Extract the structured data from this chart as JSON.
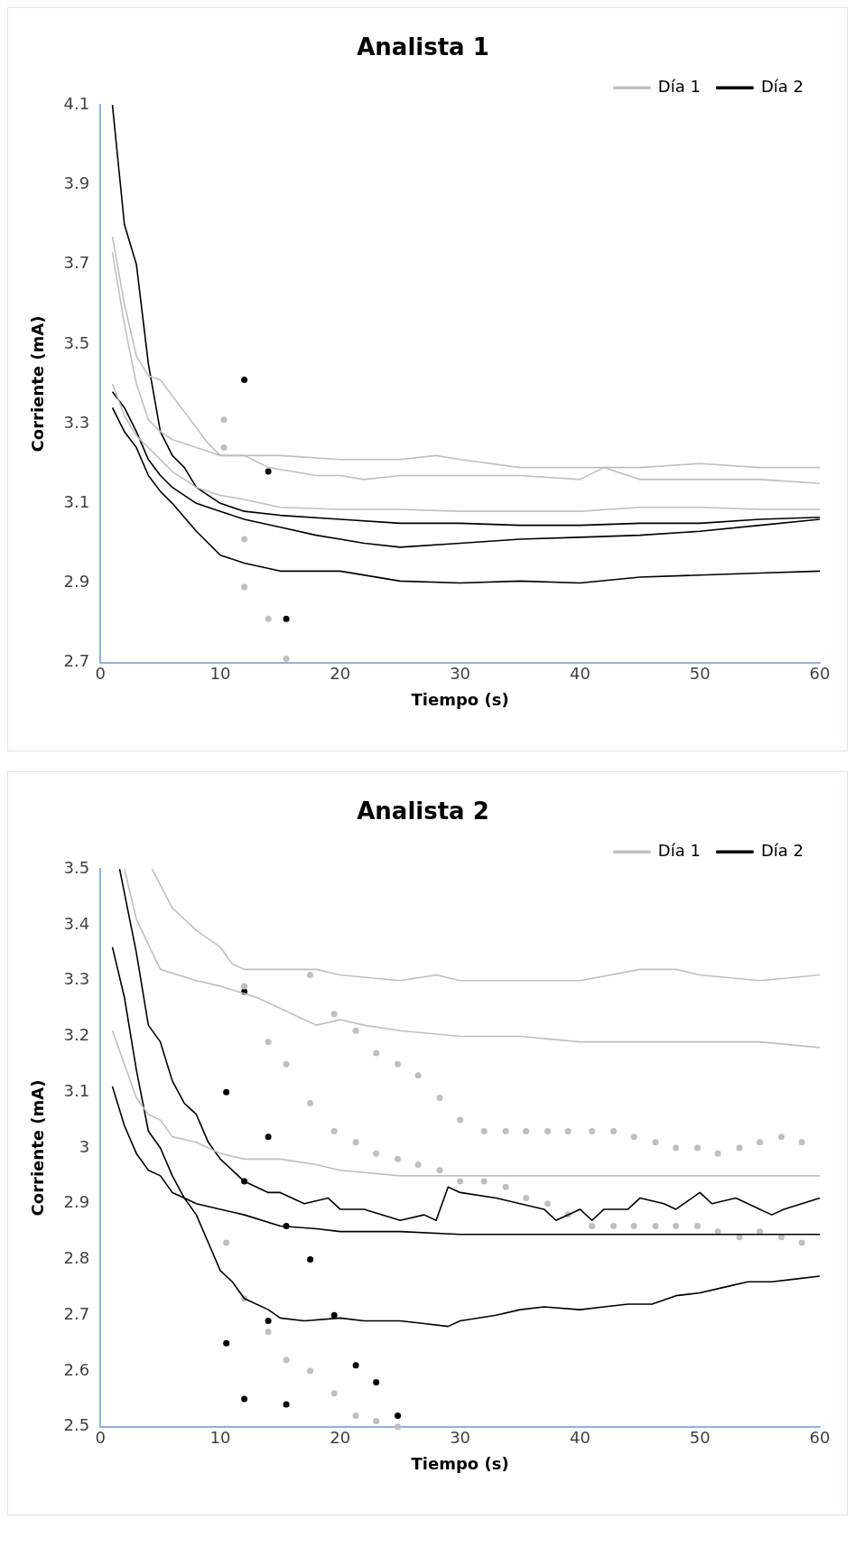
{
  "chart_data": [
    {
      "type": "line",
      "title": "Analista 1",
      "xlabel": "Tiempo (s)",
      "ylabel": "Corriente (mA)",
      "xlim": [
        0,
        60
      ],
      "ylim": [
        2.7,
        4.1
      ],
      "xticks": [
        0,
        10,
        20,
        30,
        40,
        50,
        60
      ],
      "yticks": [
        2.7,
        2.9,
        3.1,
        3.3,
        3.5,
        3.7,
        3.9,
        4.1
      ],
      "grid": false,
      "legend": "top right",
      "series": [
        {
          "name": "Día 1",
          "color": "#bfbfbf",
          "x": [
            1,
            2,
            3,
            4,
            5,
            6,
            7,
            8,
            9,
            10,
            12,
            15,
            20,
            25,
            28,
            30,
            35,
            40,
            45,
            50,
            55,
            60
          ],
          "values": [
            3.77,
            3.6,
            3.47,
            3.42,
            3.41,
            3.37,
            3.33,
            3.29,
            3.25,
            3.22,
            3.22,
            3.22,
            3.21,
            3.21,
            3.22,
            3.21,
            3.19,
            3.19,
            3.19,
            3.2,
            3.19,
            3.19
          ]
        },
        {
          "color": "#bfbfbf",
          "x": [
            1,
            2,
            3,
            4,
            5,
            6,
            8,
            10,
            12,
            14,
            16,
            18,
            20,
            22,
            25,
            30,
            35,
            40,
            42,
            45,
            50,
            55,
            60
          ],
          "values": [
            3.73,
            3.55,
            3.4,
            3.31,
            3.28,
            3.26,
            3.24,
            3.22,
            3.22,
            3.19,
            3.18,
            3.17,
            3.17,
            3.16,
            3.17,
            3.17,
            3.17,
            3.16,
            3.19,
            3.16,
            3.16,
            3.16,
            3.15
          ]
        },
        {
          "color": "#bfbfbf",
          "x": [
            1,
            2,
            3,
            4,
            5,
            6,
            8,
            10,
            12,
            15,
            20,
            25,
            30,
            35,
            40,
            45,
            50,
            55,
            60
          ],
          "values": [
            3.4,
            3.32,
            3.27,
            3.24,
            3.21,
            3.18,
            3.14,
            3.12,
            3.11,
            3.09,
            3.085,
            3.085,
            3.08,
            3.08,
            3.08,
            3.09,
            3.09,
            3.085,
            3.085
          ]
        },
        {
          "name": "Día 2",
          "color": "#000000",
          "x": [
            1,
            2,
            3,
            4,
            5,
            6,
            7,
            8,
            10,
            12,
            15,
            20,
            25,
            30,
            35,
            40,
            45,
            50,
            55,
            60
          ],
          "values": [
            4.1,
            3.8,
            3.7,
            3.45,
            3.28,
            3.22,
            3.19,
            3.14,
            3.1,
            3.08,
            3.07,
            3.06,
            3.05,
            3.05,
            3.045,
            3.045,
            3.05,
            3.05,
            3.06,
            3.065
          ]
        },
        {
          "color": "#000000",
          "x": [
            1,
            2,
            3,
            4,
            5,
            6,
            8,
            10,
            12,
            15,
            18,
            20,
            22,
            25,
            30,
            35,
            40,
            45,
            50,
            55,
            60
          ],
          "values": [
            3.38,
            3.34,
            3.28,
            3.21,
            3.17,
            3.14,
            3.1,
            3.08,
            3.06,
            3.04,
            3.02,
            3.01,
            3.0,
            2.99,
            3.0,
            3.01,
            3.015,
            3.02,
            3.03,
            3.045,
            3.06
          ]
        },
        {
          "color": "#000000",
          "x": [
            1,
            2,
            3,
            4,
            5,
            6,
            8,
            10,
            12,
            15,
            20,
            25,
            30,
            35,
            40,
            45,
            50,
            55,
            60
          ],
          "values": [
            3.34,
            3.28,
            3.24,
            3.17,
            3.13,
            3.1,
            3.03,
            2.97,
            2.95,
            2.93,
            2.93,
            2.905,
            2.9,
            2.905,
            2.9,
            2.915,
            2.92,
            2.925,
            2.93
          ]
        },
        {
          "type": "scatter",
          "marker": "circle",
          "color": "#bfbfbf",
          "x": [
            10.3,
            10.3,
            12,
            12,
            14,
            15.5
          ],
          "values": [
            3.31,
            3.24,
            3.01,
            2.89,
            2.81,
            2.71
          ]
        },
        {
          "type": "scatter",
          "marker": "circle",
          "color": "#000000",
          "x": [
            12,
            14,
            15.5
          ],
          "values": [
            3.41,
            3.18,
            2.81
          ]
        }
      ]
    },
    {
      "type": "line",
      "title": "Analista 2",
      "xlabel": "Tiempo (s)",
      "ylabel": "Corriente (mA)",
      "xlim": [
        0,
        60
      ],
      "ylim": [
        2.5,
        3.5
      ],
      "xticks": [
        0,
        10,
        20,
        30,
        40,
        50,
        60
      ],
      "yticks": [
        2.5,
        2.6,
        2.7,
        2.8,
        2.9,
        3,
        3.1,
        3.2,
        3.3,
        3.4,
        3.5
      ],
      "grid": false,
      "legend": "top right",
      "series": [
        {
          "name": "Día 1",
          "color": "#bfbfbf",
          "x": [
            4.3,
            6,
            8,
            10,
            11,
            12,
            15,
            18,
            20,
            25,
            28,
            30,
            35,
            40,
            45,
            48,
            50,
            55,
            60
          ],
          "values": [
            3.5,
            3.43,
            3.39,
            3.36,
            3.33,
            3.32,
            3.32,
            3.32,
            3.31,
            3.3,
            3.31,
            3.3,
            3.3,
            3.3,
            3.32,
            3.32,
            3.31,
            3.3,
            3.31
          ]
        },
        {
          "color": "#bfbfbf",
          "x": [
            2,
            3,
            5,
            8,
            10,
            13,
            15,
            17,
            18,
            20,
            22,
            25,
            30,
            35,
            40,
            45,
            50,
            55,
            60
          ],
          "values": [
            3.5,
            3.41,
            3.32,
            3.3,
            3.29,
            3.27,
            3.25,
            3.23,
            3.22,
            3.23,
            3.22,
            3.21,
            3.2,
            3.2,
            3.19,
            3.19,
            3.19,
            3.19,
            3.18
          ]
        },
        {
          "color": "#bfbfbf",
          "x": [
            1,
            2,
            3,
            4,
            5,
            6,
            8,
            10,
            12,
            15,
            18,
            20,
            25,
            30,
            35,
            40,
            45,
            50,
            55,
            60
          ],
          "values": [
            3.21,
            3.15,
            3.09,
            3.06,
            3.05,
            3.02,
            3.01,
            2.99,
            2.98,
            2.98,
            2.97,
            2.96,
            2.95,
            2.95,
            2.95,
            2.95,
            2.95,
            2.95,
            2.95,
            2.95
          ]
        },
        {
          "name": "Día 2",
          "color": "#000000",
          "x": [
            1.6,
            3,
            4,
            5,
            6,
            7,
            8,
            9,
            10,
            12,
            14,
            15,
            17,
            19,
            20,
            22,
            25,
            27,
            28,
            29,
            30,
            33,
            35,
            37,
            38,
            40,
            41,
            42,
            44,
            45,
            47,
            48,
            50,
            51,
            53,
            55,
            56,
            57,
            60
          ],
          "values": [
            3.5,
            3.35,
            3.22,
            3.19,
            3.12,
            3.08,
            3.06,
            3.01,
            2.98,
            2.94,
            2.92,
            2.92,
            2.9,
            2.91,
            2.89,
            2.89,
            2.87,
            2.88,
            2.87,
            2.93,
            2.92,
            2.91,
            2.9,
            2.89,
            2.87,
            2.89,
            2.87,
            2.89,
            2.89,
            2.91,
            2.9,
            2.89,
            2.92,
            2.9,
            2.91,
            2.89,
            2.88,
            2.89,
            2.91
          ]
        },
        {
          "color": "#000000",
          "x": [
            1,
            2,
            3,
            4,
            5,
            6,
            7,
            8,
            10,
            12,
            15,
            18,
            20,
            25,
            30,
            35,
            40,
            45,
            50,
            55,
            60
          ],
          "values": [
            3.36,
            3.27,
            3.14,
            3.03,
            3.0,
            2.95,
            2.91,
            2.9,
            2.89,
            2.88,
            2.86,
            2.855,
            2.85,
            2.85,
            2.845,
            2.845,
            2.845,
            2.845,
            2.845,
            2.845,
            2.845
          ]
        },
        {
          "color": "#000000",
          "x": [
            1,
            2,
            3,
            4,
            5,
            6,
            7,
            8,
            9,
            10,
            11,
            12,
            14,
            15,
            17,
            20,
            22,
            25,
            27,
            29,
            30,
            33,
            35,
            37,
            40,
            42,
            44,
            46,
            48,
            50,
            52,
            54,
            56,
            58,
            60
          ],
          "values": [
            3.11,
            3.04,
            2.99,
            2.96,
            2.95,
            2.92,
            2.91,
            2.88,
            2.83,
            2.78,
            2.76,
            2.73,
            2.71,
            2.695,
            2.69,
            2.695,
            2.69,
            2.69,
            2.685,
            2.68,
            2.69,
            2.7,
            2.71,
            2.715,
            2.71,
            2.715,
            2.72,
            2.72,
            2.735,
            2.74,
            2.75,
            2.76,
            2.76,
            2.765,
            2.77
          ]
        },
        {
          "type": "scatter",
          "marker": "circle",
          "color": "#bfbfbf",
          "x": [
            12,
            14,
            15.5,
            17.5,
            17.5,
            19.5,
            19.5,
            21.3,
            21.3,
            23,
            23,
            24.8,
            24.8,
            26.5,
            26.5,
            28.3,
            28.3,
            30,
            30,
            32,
            32,
            33.8,
            33.8,
            35.5,
            35.5,
            37.3,
            37.3,
            39,
            39,
            41,
            41,
            42.8,
            42.8,
            44.5,
            44.5,
            46.3,
            46.3,
            48,
            48,
            49.8,
            49.8,
            51.5,
            51.5,
            53.3,
            53.3,
            55,
            55,
            56.8,
            56.8,
            58.5,
            58.5,
            10.5,
            12,
            14,
            15.5,
            17.5,
            19.5,
            21.3,
            23,
            24.8
          ],
          "values": [
            3.29,
            3.19,
            3.15,
            3.31,
            3.08,
            3.24,
            3.03,
            3.21,
            3.01,
            3.17,
            2.99,
            3.15,
            2.98,
            3.13,
            2.97,
            3.09,
            2.96,
            3.05,
            2.94,
            3.03,
            2.94,
            3.03,
            2.93,
            3.03,
            2.91,
            3.03,
            2.9,
            3.03,
            2.88,
            3.03,
            2.86,
            3.03,
            2.86,
            3.02,
            2.86,
            3.01,
            2.86,
            3.0,
            2.86,
            3.0,
            2.86,
            2.99,
            2.85,
            3.0,
            2.84,
            3.01,
            2.85,
            3.02,
            2.84,
            3.01,
            2.83,
            2.83,
            2.73,
            2.67,
            2.62,
            2.6,
            2.56,
            2.52,
            2.51,
            2.5
          ]
        },
        {
          "type": "scatter",
          "marker": "circle",
          "color": "#000000",
          "x": [
            10.5,
            12,
            12,
            14,
            14,
            15.5,
            17.5,
            19.5,
            10.5,
            12,
            15.5,
            21.3,
            23,
            24.8
          ],
          "values": [
            3.1,
            3.28,
            2.94,
            3.02,
            2.69,
            2.86,
            2.8,
            2.7,
            2.65,
            2.55,
            2.54,
            2.61,
            2.58,
            2.52
          ]
        }
      ]
    }
  ]
}
